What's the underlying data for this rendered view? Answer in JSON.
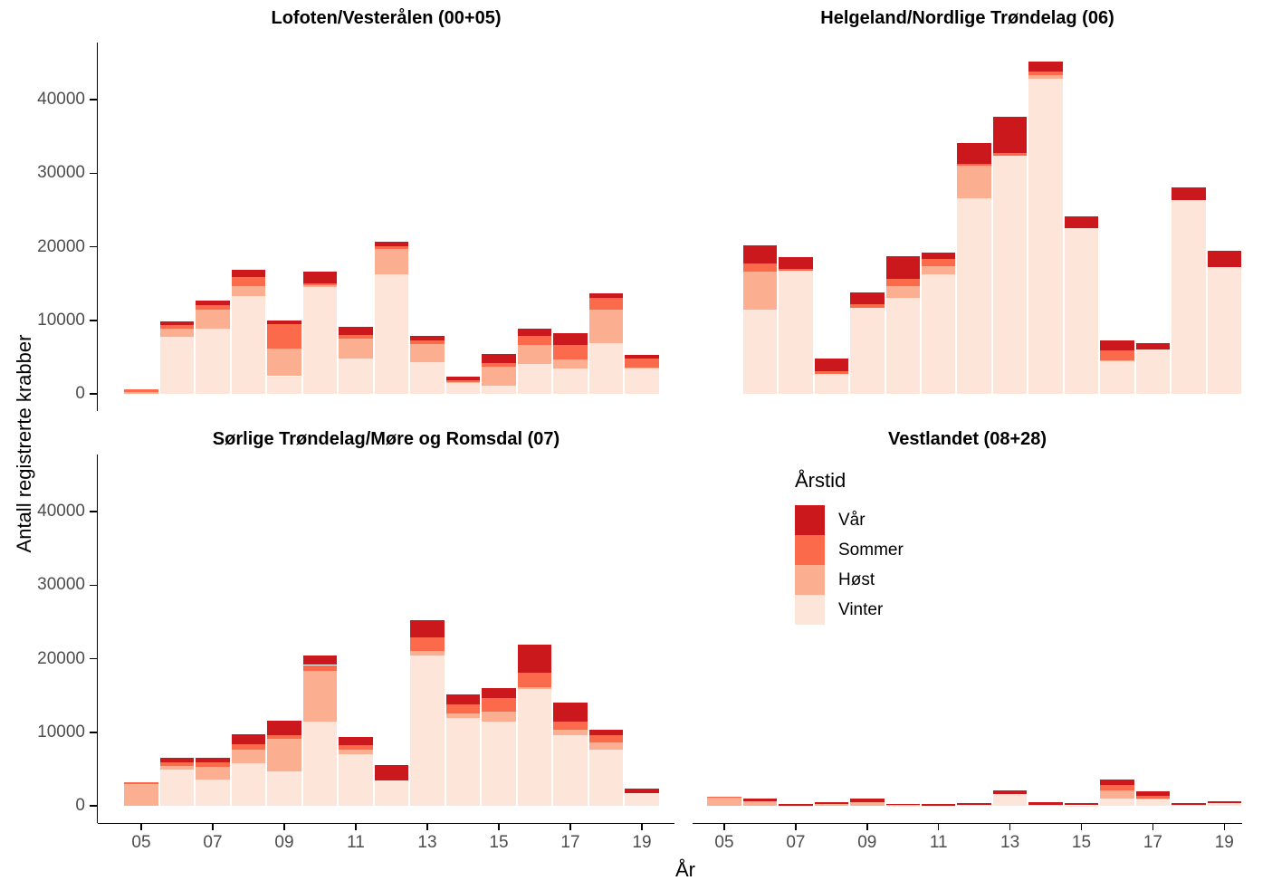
{
  "ylabel": "Antall registrerte krabber",
  "xlabel": "År",
  "legend": {
    "title": "Årstid",
    "entries": [
      {
        "label": "Vår",
        "color": "#CB181D"
      },
      {
        "label": "Sommer",
        "color": "#FB6A4A"
      },
      {
        "label": "Høst",
        "color": "#FCAE91"
      },
      {
        "label": "Vinter",
        "color": "#FEE5D9"
      }
    ]
  },
  "axes": {
    "y_ticks": [
      0,
      10000,
      20000,
      30000,
      40000
    ],
    "x_tick_labels": [
      "05",
      "07",
      "09",
      "11",
      "13",
      "15",
      "17",
      "19"
    ],
    "tick_label_color": "#4D4D4D",
    "axis_line_color": "#000000"
  },
  "chart_data": {
    "type": "bar",
    "stacked": true,
    "facet_layout": "2x2",
    "xlabel": "År",
    "ylabel": "Antall registrerte krabber",
    "ylim": [
      0,
      48000
    ],
    "grid": false,
    "legend_position": "inside-bottom-right-panel",
    "years": [
      2005,
      2006,
      2007,
      2008,
      2009,
      2010,
      2011,
      2012,
      2013,
      2014,
      2015,
      2016,
      2017,
      2018,
      2019
    ],
    "stack_order_bottom_to_top": [
      "Vinter",
      "Høst",
      "Sommer",
      "Vår"
    ],
    "colors": {
      "Vinter": "#FEE5D9",
      "Høst": "#FCAE91",
      "Sommer": "#FB6A4A",
      "Vår": "#CB181D"
    },
    "panels": [
      {
        "title": "Lofoten/Vesterålen (00+05)",
        "series": {
          "Vinter": [
            0,
            7700,
            8900,
            13300,
            2400,
            14500,
            4850,
            16300,
            4300,
            1500,
            1050,
            4100,
            3450,
            6850,
            3450
          ],
          "Høst": [
            300,
            1200,
            2600,
            1300,
            3800,
            300,
            2650,
            3400,
            2450,
            150,
            2700,
            2550,
            1200,
            4600,
            100
          ],
          "Sommer": [
            350,
            500,
            550,
            1270,
            3300,
            250,
            500,
            400,
            500,
            150,
            480,
            1200,
            2000,
            1600,
            1250
          ],
          "Vår": [
            0,
            400,
            650,
            1060,
            450,
            1550,
            1100,
            650,
            650,
            550,
            1180,
            1050,
            1600,
            600,
            450
          ]
        }
      },
      {
        "title": "Helgeland/Nordlige Trøndelag (06)",
        "series": {
          "Vinter": [
            0,
            11400,
            16800,
            2650,
            11700,
            13000,
            16200,
            26650,
            32400,
            42800,
            22500,
            4400,
            6000,
            26400,
            17300
          ],
          "Høst": [
            0,
            5200,
            0,
            0,
            0,
            1600,
            1150,
            4350,
            0,
            500,
            0,
            200,
            0,
            0,
            0
          ],
          "Sommer": [
            0,
            1100,
            150,
            400,
            500,
            1100,
            1000,
            300,
            400,
            600,
            0,
            1300,
            0,
            0,
            0
          ],
          "Vår": [
            0,
            2550,
            1700,
            1750,
            1650,
            3050,
            900,
            2800,
            4900,
            1300,
            1600,
            1400,
            900,
            1700,
            2100
          ]
        }
      },
      {
        "title": "Sørlige Trøndelag/Møre og Romsdal (07)",
        "series": {
          "Vinter": [
            0,
            4900,
            3550,
            5750,
            4700,
            11400,
            7000,
            3450,
            20450,
            12000,
            11400,
            15900,
            9650,
            7600,
            1750
          ],
          "Høst": [
            2900,
            550,
            1800,
            1850,
            4450,
            7000,
            600,
            0,
            600,
            550,
            1350,
            250,
            750,
            1000,
            0
          ],
          "Sommer": [
            250,
            500,
            500,
            820,
            500,
            750,
            600,
            0,
            1850,
            1300,
            1850,
            1950,
            1100,
            950,
            0
          ],
          "Vår": [
            0,
            600,
            700,
            1300,
            1950,
            1350,
            1100,
            2150,
            2400,
            1250,
            1350,
            3800,
            2600,
            850,
            600
          ]
        }
      },
      {
        "title": "Vestlandet (08+28)",
        "series": {
          "Vinter": [
            0,
            0,
            50,
            0,
            0,
            50,
            50,
            100,
            1650,
            150,
            60,
            1020,
            800,
            80,
            330
          ],
          "Høst": [
            1100,
            600,
            0,
            250,
            500,
            50,
            0,
            0,
            0,
            0,
            0,
            1030,
            150,
            0,
            0
          ],
          "Sommer": [
            100,
            0,
            0,
            0,
            0,
            0,
            0,
            0,
            0,
            0,
            0,
            740,
            410,
            0,
            0
          ],
          "Vår": [
            0,
            400,
            200,
            200,
            520,
            160,
            150,
            250,
            500,
            400,
            350,
            780,
            660,
            330,
            330
          ]
        }
      }
    ]
  }
}
